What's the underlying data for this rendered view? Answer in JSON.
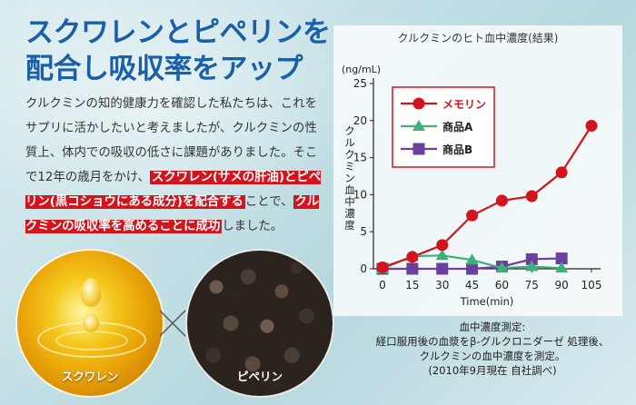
{
  "headline": {
    "line1": "スクワレンとピペリンを",
    "line2": "配合し吸収率をアップ"
  },
  "body": {
    "seg1": "クルクミンの知的健康力を確認した私たちは、これをサプリに活かしたいと考えましたが、クルクミンの性質上、体内での吸収の低さに課題がありました。そこで12年の歳月をかけ、",
    "hl1": "スクワレン(サメの肝油)とピペリン(黒コショウにある成分)を配合する",
    "seg2": "ことで、",
    "hl2": "クルクミンの吸収率を高めることに成功",
    "seg3": "しました。"
  },
  "photos": {
    "left_label": "スクワレン",
    "right_label": "ピペリン"
  },
  "colors": {
    "headline": "#1a60a8",
    "highlight": "#d3141c",
    "memorin": "#d3141c",
    "product_a": "#3fb07a",
    "product_b": "#6a3fa0"
  },
  "chart_data": {
    "type": "line",
    "title": "クルクミンのヒト血中濃度(結果)",
    "unit": "(ng/mL)",
    "ylabel": "クルクミン血中濃度",
    "xlabel": "Time(min)",
    "x": [
      0,
      15,
      30,
      45,
      60,
      75,
      90,
      105
    ],
    "xlim": [
      0,
      105
    ],
    "ylim": [
      0,
      25
    ],
    "yticks": [
      0,
      5,
      10,
      15,
      20,
      25
    ],
    "grid": false,
    "legend_position": "top-left",
    "series": [
      {
        "name": "メモリン",
        "marker": "circle",
        "color": "#d3141c",
        "x": [
          0,
          15,
          30,
          45,
          60,
          75,
          90,
          105
        ],
        "y": [
          0.2,
          1.6,
          3.2,
          7.2,
          9.2,
          9.8,
          13.0,
          19.3
        ]
      },
      {
        "name": "商品A",
        "marker": "triangle",
        "color": "#3fb07a",
        "x": [
          0,
          15,
          30,
          45,
          60,
          75,
          90
        ],
        "y": [
          0.0,
          1.7,
          1.8,
          1.2,
          0.1,
          0.3,
          0.1
        ]
      },
      {
        "name": "商品B",
        "marker": "square",
        "color": "#6a3fa0",
        "x": [
          0,
          15,
          30,
          45,
          60,
          75,
          90
        ],
        "y": [
          0.0,
          0.0,
          0.0,
          0.0,
          0.3,
          1.3,
          1.4
        ]
      }
    ]
  },
  "caption": {
    "line1": "血中濃度測定:",
    "line2": "経口服用後の血漿をβ-グルクロニダーゼ 処理後、",
    "line3": "クルクミンの血中濃度を測定。",
    "line4": "(2010年9月現在 自社調べ)"
  }
}
